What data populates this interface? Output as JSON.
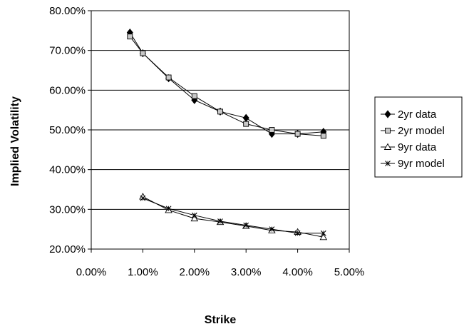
{
  "chart_data": {
    "type": "line",
    "xlabel": "Strike",
    "ylabel": "Implied Volatility",
    "xlim": [
      0.0,
      5.0
    ],
    "ylim": [
      20.0,
      80.0
    ],
    "x_ticks": [
      "0.00%",
      "1.00%",
      "2.00%",
      "3.00%",
      "4.00%",
      "5.00%"
    ],
    "y_ticks": [
      "20.00%",
      "30.00%",
      "40.00%",
      "50.00%",
      "60.00%",
      "70.00%",
      "80.00%"
    ],
    "x_unit": "%",
    "y_unit": "%",
    "grid": "horizontal major gridlines",
    "legend_position": "right",
    "series": [
      {
        "name": "2yr data",
        "marker": "diamond-filled",
        "x": [
          0.75,
          1.0,
          1.5,
          2.0,
          2.5,
          3.0,
          3.5,
          4.0,
          4.5
        ],
        "y": [
          74.5,
          69.3,
          63.0,
          57.5,
          54.6,
          53.0,
          49.0,
          49.0,
          49.5
        ]
      },
      {
        "name": "2yr model",
        "marker": "square-open",
        "x": [
          0.75,
          1.0,
          1.5,
          2.0,
          2.5,
          3.0,
          3.5,
          4.0,
          4.5
        ],
        "y": [
          73.5,
          69.3,
          63.2,
          58.5,
          54.6,
          51.5,
          50.0,
          49.0,
          48.5
        ]
      },
      {
        "name": "9yr data",
        "marker": "triangle-open",
        "x": [
          1.0,
          1.5,
          2.0,
          2.5,
          3.0,
          3.5,
          4.0,
          4.5
        ],
        "y": [
          33.2,
          29.8,
          27.7,
          26.8,
          25.8,
          24.7,
          24.3,
          23.0
        ]
      },
      {
        "name": "9yr model",
        "marker": "x-cross",
        "x": [
          1.0,
          1.5,
          2.0,
          2.5,
          3.0,
          3.5,
          4.0,
          4.5
        ],
        "y": [
          32.8,
          30.2,
          28.5,
          27.0,
          26.0,
          25.0,
          24.0,
          24.0
        ]
      }
    ]
  }
}
